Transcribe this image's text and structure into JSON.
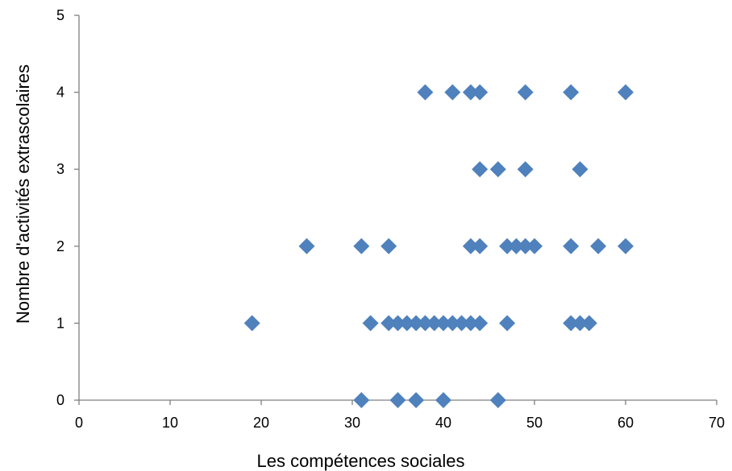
{
  "chart_data": {
    "type": "scatter",
    "title": "",
    "xlabel": "Les compétences sociales",
    "ylabel": "Nombre d'activités extrascolaires",
    "xlim": [
      0,
      70
    ],
    "ylim": [
      0,
      5
    ],
    "xticks": [
      0,
      10,
      20,
      30,
      40,
      50,
      60,
      70
    ],
    "yticks": [
      0,
      1,
      2,
      3,
      4,
      5
    ],
    "grid": false,
    "legend": "none",
    "marker": "diamond",
    "color": "#4F81BD",
    "points": [
      {
        "x": 38,
        "y": 4
      },
      {
        "x": 41,
        "y": 4
      },
      {
        "x": 43,
        "y": 4
      },
      {
        "x": 44,
        "y": 4
      },
      {
        "x": 49,
        "y": 4
      },
      {
        "x": 54,
        "y": 4
      },
      {
        "x": 60,
        "y": 4
      },
      {
        "x": 44,
        "y": 3
      },
      {
        "x": 46,
        "y": 3
      },
      {
        "x": 49,
        "y": 3
      },
      {
        "x": 55,
        "y": 3
      },
      {
        "x": 25,
        "y": 2
      },
      {
        "x": 31,
        "y": 2
      },
      {
        "x": 34,
        "y": 2
      },
      {
        "x": 43,
        "y": 2
      },
      {
        "x": 44,
        "y": 2
      },
      {
        "x": 47,
        "y": 2
      },
      {
        "x": 48,
        "y": 2
      },
      {
        "x": 49,
        "y": 2
      },
      {
        "x": 50,
        "y": 2
      },
      {
        "x": 54,
        "y": 2
      },
      {
        "x": 57,
        "y": 2
      },
      {
        "x": 60,
        "y": 2
      },
      {
        "x": 19,
        "y": 1
      },
      {
        "x": 32,
        "y": 1
      },
      {
        "x": 34,
        "y": 1
      },
      {
        "x": 35,
        "y": 1
      },
      {
        "x": 36,
        "y": 1
      },
      {
        "x": 37,
        "y": 1
      },
      {
        "x": 38,
        "y": 1
      },
      {
        "x": 39,
        "y": 1
      },
      {
        "x": 40,
        "y": 1
      },
      {
        "x": 41,
        "y": 1
      },
      {
        "x": 42,
        "y": 1
      },
      {
        "x": 43,
        "y": 1
      },
      {
        "x": 44,
        "y": 1
      },
      {
        "x": 47,
        "y": 1
      },
      {
        "x": 54,
        "y": 1
      },
      {
        "x": 55,
        "y": 1
      },
      {
        "x": 56,
        "y": 1
      },
      {
        "x": 31,
        "y": 0
      },
      {
        "x": 35,
        "y": 0
      },
      {
        "x": 37,
        "y": 0
      },
      {
        "x": 40,
        "y": 0
      },
      {
        "x": 46,
        "y": 0
      }
    ]
  }
}
